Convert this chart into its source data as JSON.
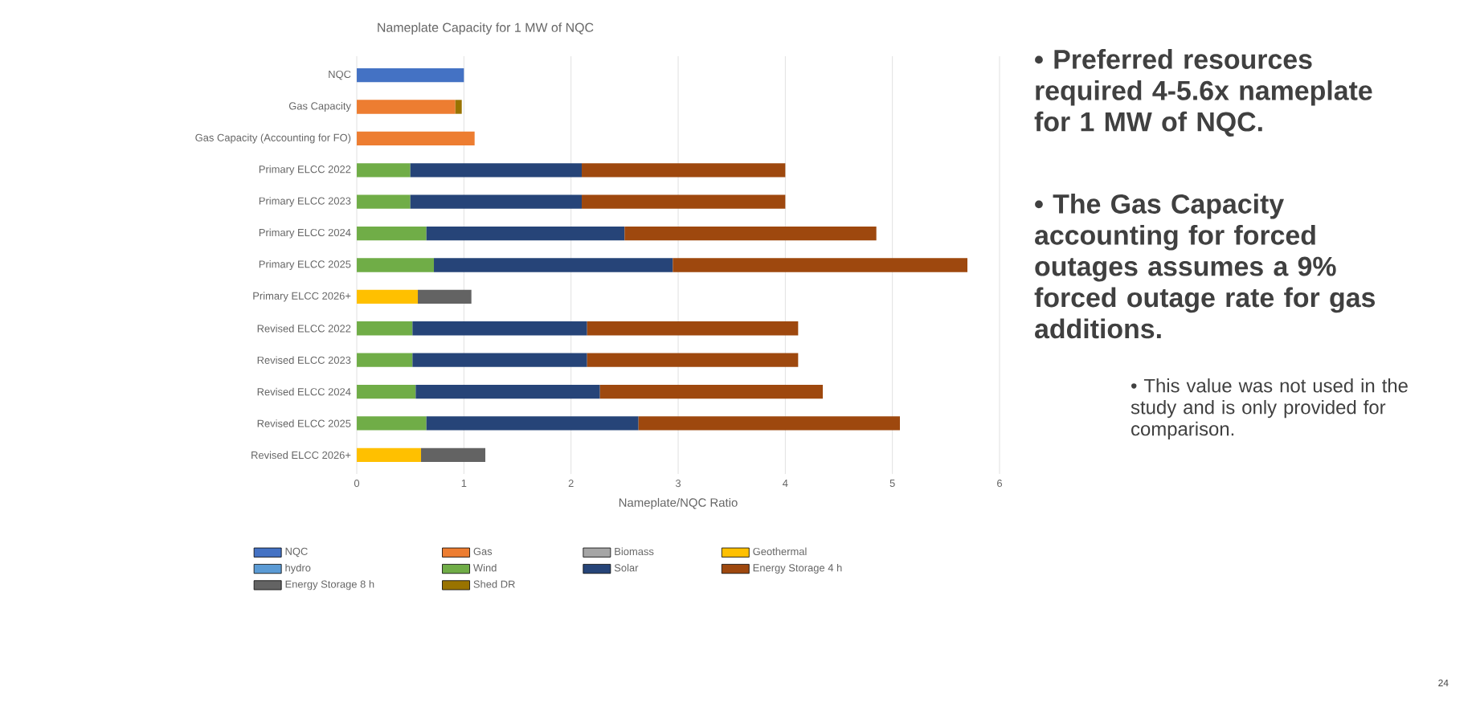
{
  "chart_data": {
    "type": "bar",
    "orientation": "horizontal",
    "stacked": true,
    "title": "Nameplate Capacity for 1 MW of NQC",
    "xlabel": "Nameplate/NQC Ratio",
    "categories": [
      "NQC",
      "Gas Capacity",
      "Gas Capacity (Accounting for FO)",
      "Primary ELCC 2022",
      "Primary ELCC 2023",
      "Primary ELCC 2024",
      "Primary ELCC 2025",
      "Primary ELCC 2026+",
      "Revised ELCC 2022",
      "Revised ELCC 2023",
      "Revised ELCC 2024",
      "Revised ELCC 2025",
      "Revised ELCC 2026+"
    ],
    "series": [
      {
        "name": "NQC",
        "color": "#4472c4",
        "values": [
          1.0,
          null,
          null,
          null,
          null,
          null,
          null,
          null,
          null,
          null,
          null,
          null,
          null
        ]
      },
      {
        "name": "Gas",
        "color": "#ed7d31",
        "values": [
          null,
          0.92,
          1.1,
          null,
          null,
          null,
          null,
          null,
          null,
          null,
          null,
          null,
          null
        ]
      },
      {
        "name": "Biomass",
        "color": "#a5a5a5",
        "values": [
          null,
          null,
          null,
          null,
          null,
          null,
          null,
          null,
          null,
          null,
          null,
          null,
          null
        ]
      },
      {
        "name": "Geothermal",
        "color": "#ffc000",
        "values": [
          null,
          null,
          null,
          null,
          null,
          null,
          null,
          0.57,
          null,
          null,
          null,
          null,
          0.6
        ]
      },
      {
        "name": "hydro",
        "color": "#5b9bd5",
        "values": [
          null,
          null,
          null,
          null,
          null,
          null,
          null,
          null,
          null,
          null,
          null,
          null,
          null
        ]
      },
      {
        "name": "Wind",
        "color": "#70ad47",
        "values": [
          null,
          null,
          null,
          0.5,
          0.5,
          0.65,
          0.72,
          null,
          0.52,
          0.52,
          0.55,
          0.65,
          null
        ]
      },
      {
        "name": "Solar",
        "color": "#264478",
        "values": [
          null,
          null,
          null,
          1.6,
          1.6,
          1.85,
          2.23,
          null,
          1.63,
          1.63,
          1.72,
          1.98,
          null
        ]
      },
      {
        "name": "Energy Storage 4 h",
        "color": "#9e480e",
        "values": [
          null,
          null,
          null,
          1.9,
          1.9,
          2.35,
          2.75,
          null,
          1.97,
          1.97,
          2.08,
          2.44,
          null
        ]
      },
      {
        "name": "Energy Storage 8 h",
        "color": "#636363",
        "values": [
          null,
          null,
          null,
          null,
          null,
          null,
          null,
          0.5,
          null,
          null,
          null,
          null,
          0.6
        ]
      },
      {
        "name": "Shed DR",
        "color": "#997300",
        "values": [
          null,
          0.06,
          null,
          null,
          null,
          null,
          null,
          null,
          null,
          null,
          null,
          null,
          null
        ]
      }
    ],
    "xlim": [
      0,
      6
    ],
    "xticks": [
      0,
      1,
      2,
      3,
      4,
      5,
      6
    ],
    "grid": "x",
    "legend": "bottom",
    "annotations": [
      "• Preferred resources required 4-5.6x nameplate for 1 MW of NQC.",
      "• The Gas Capacity accounting for forced outages assumes a 9% forced outage rate for gas additions.",
      "• This value was not used in the study and is only provided for comparison.",
      "24"
    ]
  }
}
